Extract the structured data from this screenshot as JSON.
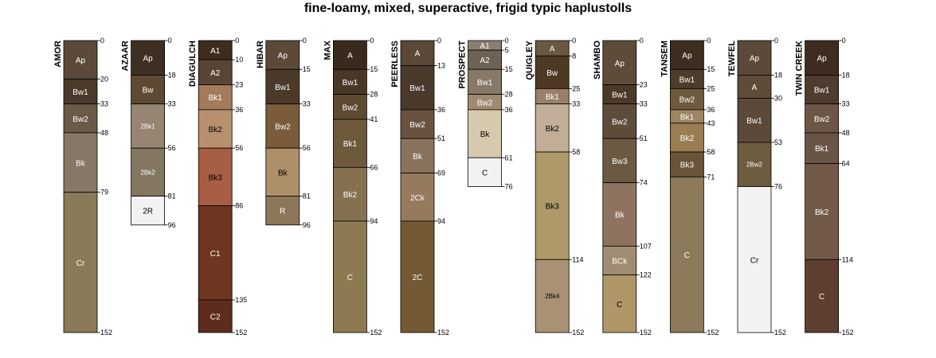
{
  "chart_data": {
    "type": "soil-profile-sketch",
    "title": "fine-loamy, mixed, superactive, frigid typic haplustolls",
    "depth_range": [
      0,
      152
    ],
    "profiles": [
      {
        "name": "AMOR",
        "horizons": [
          {
            "name": "Ap",
            "top": 0,
            "bottom": 20,
            "color": "#5b4a3b",
            "text_color": "#ffffff"
          },
          {
            "name": "Bw1",
            "top": 20,
            "bottom": 33,
            "color": "#4a3a2b",
            "text_color": "#ffffff"
          },
          {
            "name": "Bw2",
            "top": 33,
            "bottom": 48,
            "color": "#6b5a48",
            "text_color": "#ffffff"
          },
          {
            "name": "Bk",
            "top": 48,
            "bottom": 79,
            "color": "#857866",
            "text_color": "#ffffff"
          },
          {
            "name": "Cr",
            "top": 79,
            "bottom": 152,
            "color": "#8b7a58",
            "text_color": "#ffffff"
          }
        ]
      },
      {
        "name": "AZAAR",
        "horizons": [
          {
            "name": "Ap",
            "top": 0,
            "bottom": 18,
            "color": "#3e2f22",
            "text_color": "#ffffff"
          },
          {
            "name": "Bw",
            "top": 18,
            "bottom": 33,
            "color": "#5e4a34",
            "text_color": "#ffffff"
          },
          {
            "name": "2Bk1",
            "top": 33,
            "bottom": 56,
            "color": "#958572",
            "text_color": "#ffffff"
          },
          {
            "name": "2Bk2",
            "top": 56,
            "bottom": 81,
            "color": "#847762",
            "text_color": "#ffffff"
          },
          {
            "name": "2R",
            "top": 81,
            "bottom": 96,
            "color": "#f2f2f2",
            "text_color": "#000000"
          }
        ]
      },
      {
        "name": "DIAGULCH",
        "horizons": [
          {
            "name": "A1",
            "top": 0,
            "bottom": 10,
            "color": "#3e2c1e",
            "text_color": "#ffffff"
          },
          {
            "name": "A2",
            "top": 10,
            "bottom": 23,
            "color": "#5a4535",
            "text_color": "#ffffff"
          },
          {
            "name": "Bk1",
            "top": 23,
            "bottom": 36,
            "color": "#a37a5a",
            "text_color": "#ffffff"
          },
          {
            "name": "Bk2",
            "top": 36,
            "bottom": 56,
            "color": "#b8906e",
            "text_color": "#000000"
          },
          {
            "name": "Bk3",
            "top": 56,
            "bottom": 86,
            "color": "#a85e44",
            "text_color": "#000000"
          },
          {
            "name": "C1",
            "top": 86,
            "bottom": 135,
            "color": "#6e3520",
            "text_color": "#ffffff"
          },
          {
            "name": "C2",
            "top": 135,
            "bottom": 152,
            "color": "#5e2c1c",
            "text_color": "#ffffff"
          }
        ]
      },
      {
        "name": "HIBAR",
        "horizons": [
          {
            "name": "Ap",
            "top": 0,
            "bottom": 15,
            "color": "#5b4a3a",
            "text_color": "#ffffff"
          },
          {
            "name": "Bw1",
            "top": 15,
            "bottom": 33,
            "color": "#4b3a2a",
            "text_color": "#ffffff"
          },
          {
            "name": "Bw2",
            "top": 33,
            "bottom": 56,
            "color": "#7a5c3a",
            "text_color": "#ffffff"
          },
          {
            "name": "Bk",
            "top": 56,
            "bottom": 81,
            "color": "#ae9068",
            "text_color": "#000000"
          },
          {
            "name": "R",
            "top": 81,
            "bottom": 96,
            "color": "#8e7758",
            "text_color": "#ffffff"
          }
        ]
      },
      {
        "name": "MAX",
        "horizons": [
          {
            "name": "A",
            "top": 0,
            "bottom": 15,
            "color": "#3a2a1e",
            "text_color": "#ffffff"
          },
          {
            "name": "Bw1",
            "top": 15,
            "bottom": 28,
            "color": "#4a3826",
            "text_color": "#ffffff"
          },
          {
            "name": "Bw2",
            "top": 28,
            "bottom": 41,
            "color": "#5e4a33",
            "text_color": "#ffffff"
          },
          {
            "name": "Bk1",
            "top": 41,
            "bottom": 66,
            "color": "#6e5a3a",
            "text_color": "#ffffff"
          },
          {
            "name": "Bk2",
            "top": 66,
            "bottom": 94,
            "color": "#857050",
            "text_color": "#ffffff"
          },
          {
            "name": "C",
            "top": 94,
            "bottom": 152,
            "color": "#8e7a50",
            "text_color": "#ffffff"
          }
        ]
      },
      {
        "name": "PEERLESS",
        "horizons": [
          {
            "name": "A",
            "top": 0,
            "bottom": 13,
            "color": "#5a4838",
            "text_color": "#ffffff"
          },
          {
            "name": "Bw1",
            "top": 13,
            "bottom": 36,
            "color": "#4a3a2c",
            "text_color": "#ffffff"
          },
          {
            "name": "Bw2",
            "top": 36,
            "bottom": 51,
            "color": "#6a5240",
            "text_color": "#ffffff"
          },
          {
            "name": "Bk",
            "top": 51,
            "bottom": 69,
            "color": "#8a735e",
            "text_color": "#ffffff"
          },
          {
            "name": "2Ck",
            "top": 69,
            "bottom": 94,
            "color": "#967a5e",
            "text_color": "#ffffff"
          },
          {
            "name": "2C",
            "top": 94,
            "bottom": 152,
            "color": "#735a34",
            "text_color": "#ffffff"
          }
        ]
      },
      {
        "name": "PROSPECT",
        "horizons": [
          {
            "name": "A1",
            "top": 0,
            "bottom": 5,
            "color": "#8a7e72",
            "text_color": "#ffffff"
          },
          {
            "name": "A2",
            "top": 5,
            "bottom": 15,
            "color": "#6e6254",
            "text_color": "#ffffff"
          },
          {
            "name": "Bw1",
            "top": 15,
            "bottom": 28,
            "color": "#887868",
            "text_color": "#ffffff"
          },
          {
            "name": "Bw2",
            "top": 28,
            "bottom": 36,
            "color": "#a18a72",
            "text_color": "#ffffff"
          },
          {
            "name": "Bk",
            "top": 36,
            "bottom": 61,
            "color": "#d6c9ad",
            "text_color": "#000000"
          },
          {
            "name": "C",
            "top": 61,
            "bottom": 76,
            "color": "#f2f2f2",
            "text_color": "#000000"
          }
        ]
      },
      {
        "name": "QUIGLEY",
        "horizons": [
          {
            "name": "A",
            "top": 0,
            "bottom": 8,
            "color": "#6a5840",
            "text_color": "#ffffff"
          },
          {
            "name": "Bw",
            "top": 8,
            "bottom": 25,
            "color": "#4e3a24",
            "text_color": "#ffffff"
          },
          {
            "name": "Bk1",
            "top": 25,
            "bottom": 33,
            "color": "#9a806a",
            "text_color": "#ffffff"
          },
          {
            "name": "Bk2",
            "top": 33,
            "bottom": 58,
            "color": "#c2ae98",
            "text_color": "#000000"
          },
          {
            "name": "Bk3",
            "top": 58,
            "bottom": 114,
            "color": "#ae9a68",
            "text_color": "#000000"
          },
          {
            "name": "2Bk4",
            "top": 114,
            "bottom": 152,
            "color": "#a99274",
            "text_color": "#000000"
          }
        ]
      },
      {
        "name": "SHAMBO",
        "horizons": [
          {
            "name": "Ap",
            "top": 0,
            "bottom": 23,
            "color": "#5e4c3a",
            "text_color": "#ffffff"
          },
          {
            "name": "Bw1",
            "top": 23,
            "bottom": 33,
            "color": "#4b3a2a",
            "text_color": "#ffffff"
          },
          {
            "name": "Bw2",
            "top": 33,
            "bottom": 51,
            "color": "#5e4c3a",
            "text_color": "#ffffff"
          },
          {
            "name": "Bw3",
            "top": 51,
            "bottom": 74,
            "color": "#6a5a44",
            "text_color": "#ffffff"
          },
          {
            "name": "Bk",
            "top": 74,
            "bottom": 107,
            "color": "#8e7460",
            "text_color": "#ffffff"
          },
          {
            "name": "BCk",
            "top": 107,
            "bottom": 122,
            "color": "#a08c72",
            "text_color": "#ffffff"
          },
          {
            "name": "C",
            "top": 122,
            "bottom": 152,
            "color": "#ae9668",
            "text_color": "#000000"
          }
        ]
      },
      {
        "name": "TANSEM",
        "horizons": [
          {
            "name": "Ap",
            "top": 0,
            "bottom": 15,
            "color": "#3e2e20",
            "text_color": "#ffffff"
          },
          {
            "name": "Bw1",
            "top": 15,
            "bottom": 25,
            "color": "#4e3c2a",
            "text_color": "#ffffff"
          },
          {
            "name": "Bw2",
            "top": 25,
            "bottom": 36,
            "color": "#6e5a3c",
            "text_color": "#ffffff"
          },
          {
            "name": "Bk1",
            "top": 36,
            "bottom": 43,
            "color": "#9e8460",
            "text_color": "#ffffff"
          },
          {
            "name": "Bk2",
            "top": 43,
            "bottom": 58,
            "color": "#9a7e52",
            "text_color": "#ffffff"
          },
          {
            "name": "Bk3",
            "top": 58,
            "bottom": 71,
            "color": "#6a5438",
            "text_color": "#ffffff"
          },
          {
            "name": "C",
            "top": 71,
            "bottom": 152,
            "color": "#8c7a5a",
            "text_color": "#ffffff"
          }
        ]
      },
      {
        "name": "TEWFEL",
        "horizons": [
          {
            "name": "Ap",
            "top": 0,
            "bottom": 18,
            "color": "#5b4a3a",
            "text_color": "#ffffff"
          },
          {
            "name": "A",
            "top": 18,
            "bottom": 30,
            "color": "#5e4c38",
            "text_color": "#ffffff"
          },
          {
            "name": "Bw1",
            "top": 30,
            "bottom": 53,
            "color": "#5b4a3a",
            "text_color": "#ffffff"
          },
          {
            "name": "2Bw2",
            "top": 53,
            "bottom": 76,
            "color": "#6e5c40",
            "text_color": "#ffffff"
          },
          {
            "name": "Cr",
            "top": 76,
            "bottom": 152,
            "color": "#f2f2f2",
            "text_color": "#000000"
          }
        ]
      },
      {
        "name": "TWIN CREEK",
        "horizons": [
          {
            "name": "Ap",
            "top": 0,
            "bottom": 18,
            "color": "#3e2c20",
            "text_color": "#ffffff"
          },
          {
            "name": "Bw1",
            "top": 18,
            "bottom": 33,
            "color": "#4e3c2e",
            "text_color": "#ffffff"
          },
          {
            "name": "Bw2",
            "top": 33,
            "bottom": 48,
            "color": "#6e5646",
            "text_color": "#ffffff"
          },
          {
            "name": "Bk1",
            "top": 48,
            "bottom": 64,
            "color": "#6a5446",
            "text_color": "#ffffff"
          },
          {
            "name": "Bk2",
            "top": 64,
            "bottom": 114,
            "color": "#735a48",
            "text_color": "#ffffff"
          },
          {
            "name": "C",
            "top": 114,
            "bottom": 152,
            "color": "#5e3e2e",
            "text_color": "#ffffff"
          }
        ]
      }
    ]
  }
}
